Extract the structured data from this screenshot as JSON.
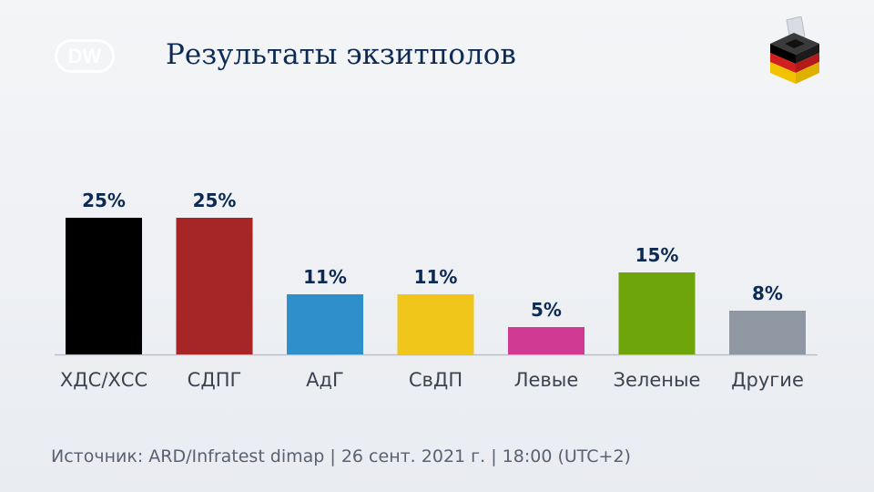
{
  "brand": {
    "logo_text": "DW"
  },
  "title": "Результаты экзитполов",
  "source": "Источник: ARD/Infratest dimap | 26 сент. 2021 г. | 18:00 (UTC+2)",
  "icons": {
    "logo": "dw-logo-icon",
    "ballot": "ballot-box-icon"
  },
  "chart_data": {
    "type": "bar",
    "categories": [
      "ХДС/ХСС",
      "СДПГ",
      "АдГ",
      "СвДП",
      "Левые",
      "Зеленые",
      "Другие"
    ],
    "values": [
      25,
      25,
      11,
      11,
      5,
      15,
      8
    ],
    "value_labels": [
      "25%",
      "25%",
      "11%",
      "11%",
      "5%",
      "15%",
      "8%"
    ],
    "colors": [
      "#000000",
      "#a62628",
      "#2f8fcb",
      "#f0c61a",
      "#d13a92",
      "#6ea50a",
      "#8f97a3"
    ],
    "unit": "%",
    "ylim": [
      0,
      25
    ],
    "grid": false,
    "legend": "none"
  }
}
